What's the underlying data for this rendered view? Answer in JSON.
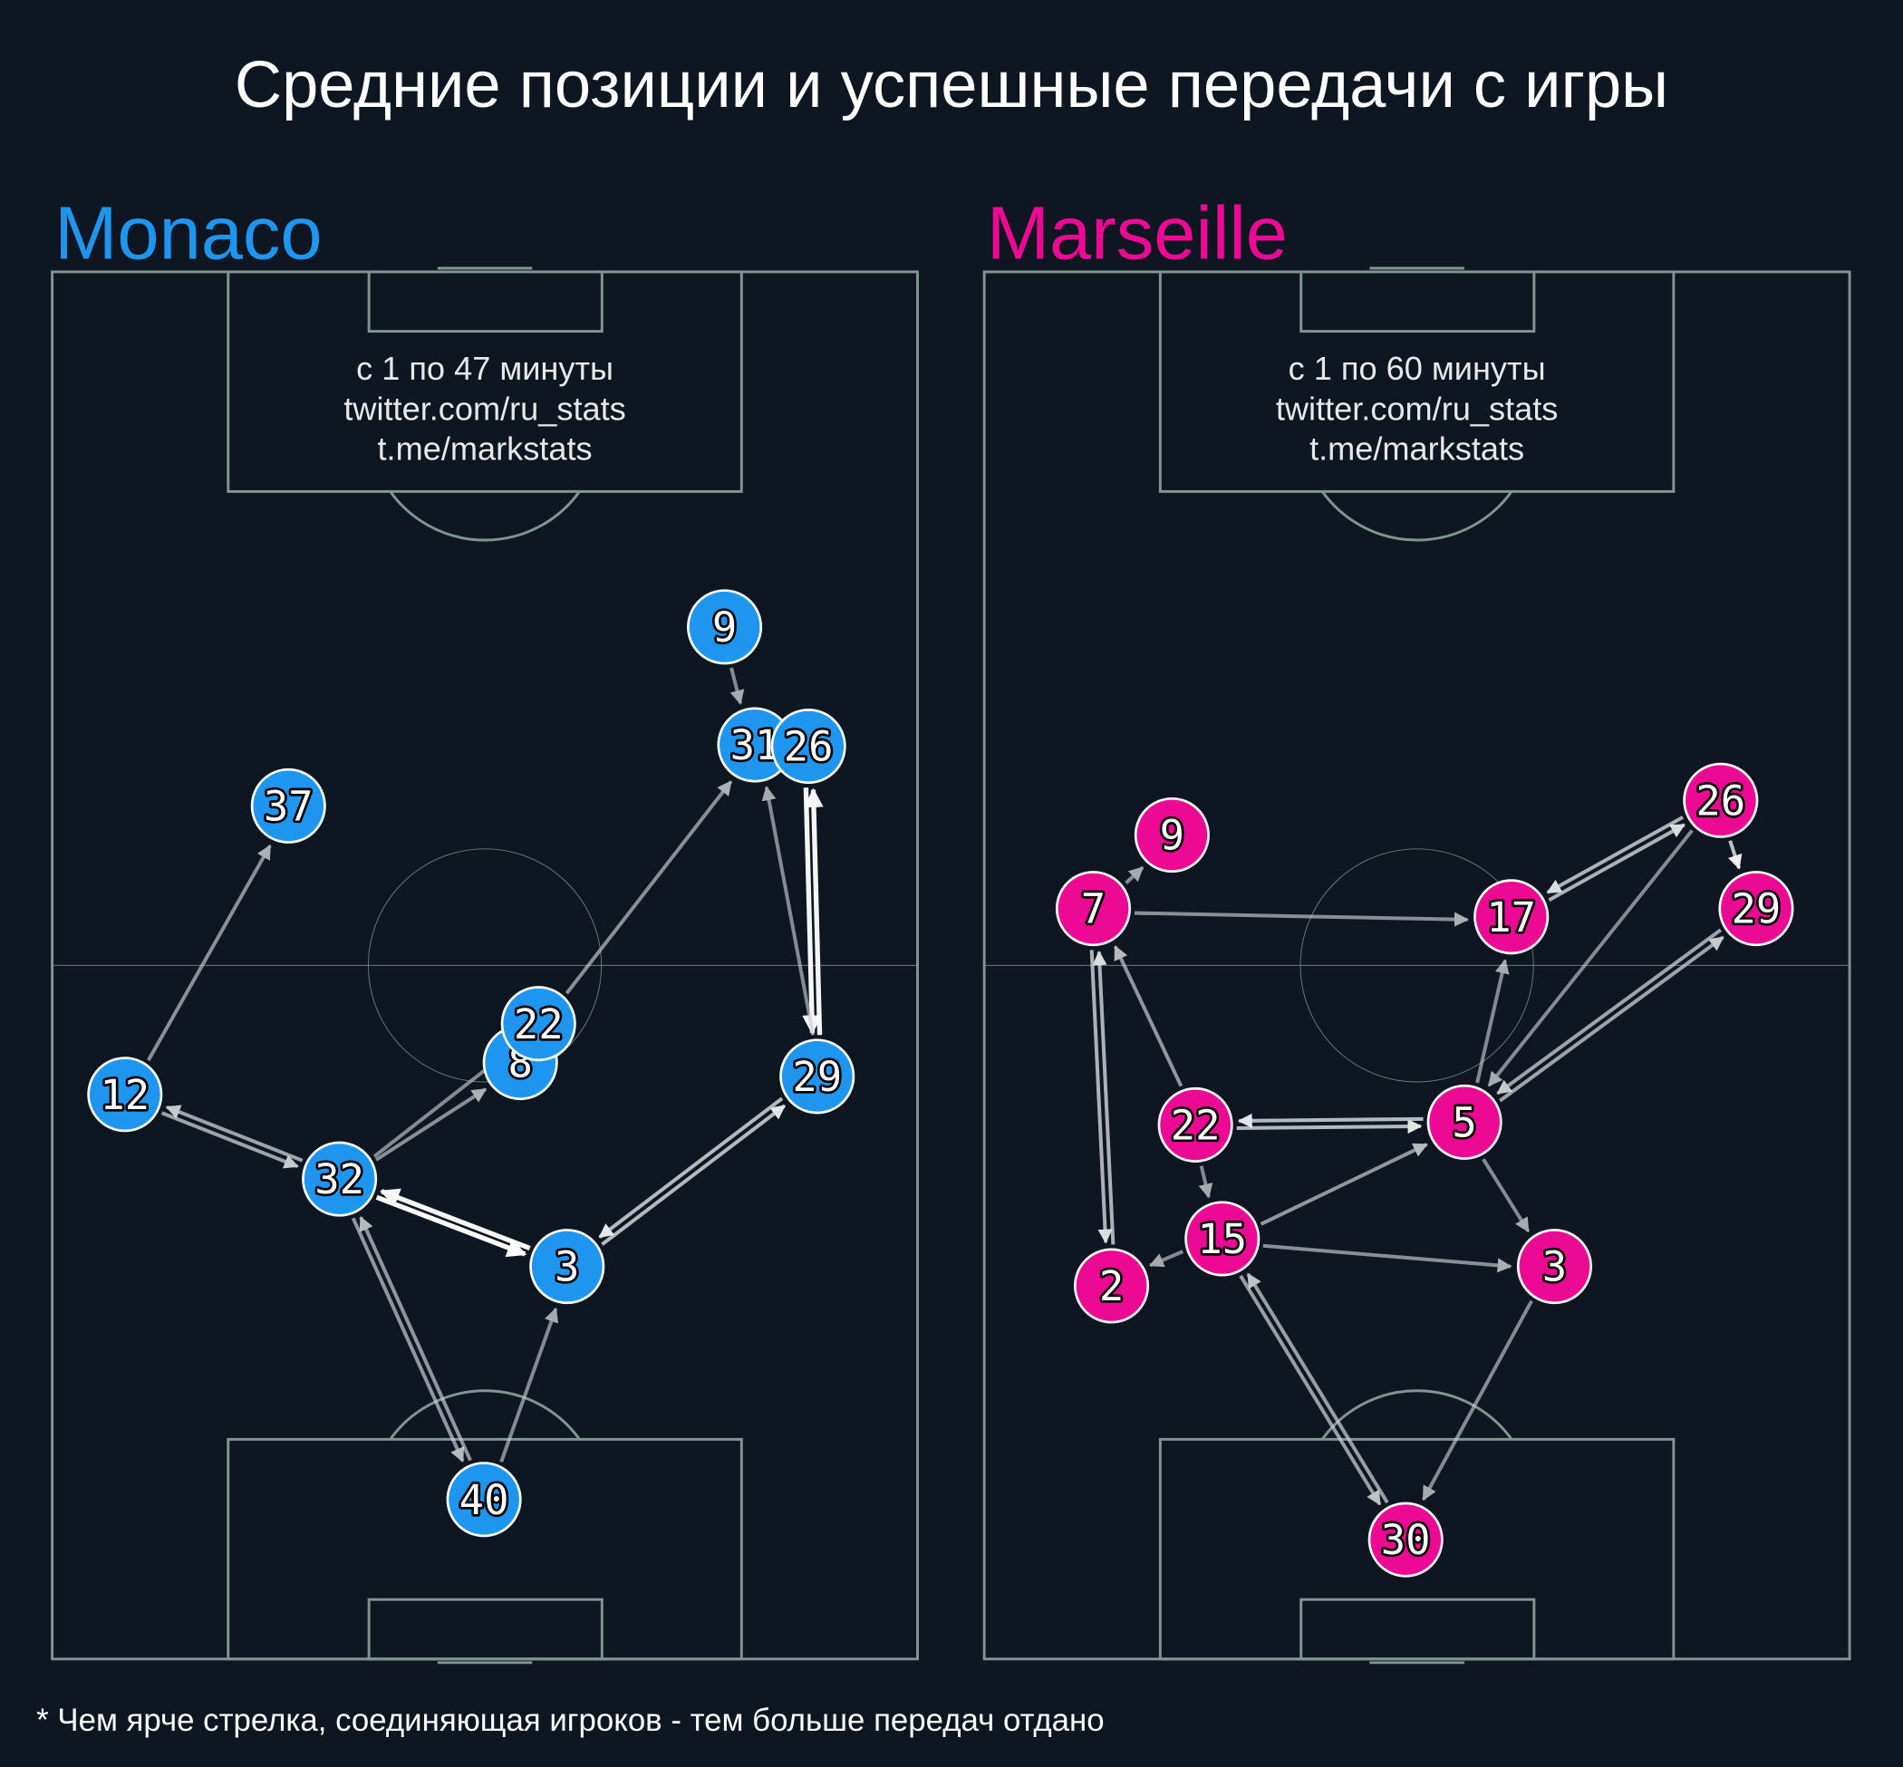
{
  "title": "Средние позиции и успешные передачи с игры",
  "footnote": "* Чем ярче стрелка, соединяющая игроков - тем больше передач отдано",
  "colors": {
    "background": "#0e1721",
    "pitch_lines": "#7f9590",
    "monaco": "#1e96f0",
    "marseille": "#ec0a95",
    "arrow": "#ffffff"
  },
  "chart_data": [
    {
      "type": "scatter",
      "team": "Monaco",
      "color": "#1e96f0",
      "info_lines": [
        "с 1 по 47 минуты",
        "twitter.com/ru_stats",
        "t.me/markstats"
      ],
      "players": [
        {
          "num": "9",
          "x": 77.7,
          "y": 25.6
        },
        {
          "num": "31",
          "x": 81.2,
          "y": 34.1
        },
        {
          "num": "26",
          "x": 87.4,
          "y": 34.2
        },
        {
          "num": "37",
          "x": 27.3,
          "y": 38.5
        },
        {
          "num": "8",
          "x": 54.1,
          "y": 57.0
        },
        {
          "num": "22",
          "x": 56.2,
          "y": 54.2
        },
        {
          "num": "12",
          "x": 8.4,
          "y": 59.3
        },
        {
          "num": "29",
          "x": 88.4,
          "y": 58.0
        },
        {
          "num": "32",
          "x": 33.2,
          "y": 65.4
        },
        {
          "num": "3",
          "x": 59.5,
          "y": 71.7
        },
        {
          "num": "40",
          "x": 49.9,
          "y": 88.5
        }
      ],
      "passes": [
        {
          "from": "9",
          "to": "31",
          "intensity": 0.5
        },
        {
          "from": "12",
          "to": "37",
          "intensity": 0.55
        },
        {
          "from": "12",
          "to": "32",
          "intensity": 0.7
        },
        {
          "from": "32",
          "to": "12",
          "intensity": 0.7
        },
        {
          "from": "32",
          "to": "8",
          "intensity": 0.55
        },
        {
          "from": "32",
          "to": "22",
          "intensity": 0.5
        },
        {
          "from": "22",
          "to": "31",
          "intensity": 0.55
        },
        {
          "from": "32",
          "to": "3",
          "intensity": 1.0
        },
        {
          "from": "3",
          "to": "32",
          "intensity": 0.95
        },
        {
          "from": "3",
          "to": "29",
          "intensity": 0.85
        },
        {
          "from": "29",
          "to": "3",
          "intensity": 0.85
        },
        {
          "from": "29",
          "to": "26",
          "intensity": 0.95
        },
        {
          "from": "26",
          "to": "29",
          "intensity": 0.95
        },
        {
          "from": "29",
          "to": "31",
          "intensity": 0.5
        },
        {
          "from": "40",
          "to": "32",
          "intensity": 0.6
        },
        {
          "from": "32",
          "to": "40",
          "intensity": 0.6
        },
        {
          "from": "40",
          "to": "3",
          "intensity": 0.5
        }
      ]
    },
    {
      "type": "scatter",
      "team": "Marseille",
      "color": "#ec0a95",
      "info_lines": [
        "с 1 по 60 минуты",
        "twitter.com/ru_stats",
        "t.me/markstats"
      ],
      "players": [
        {
          "num": "26",
          "x": 85.1,
          "y": 38.1
        },
        {
          "num": "9",
          "x": 21.7,
          "y": 40.6
        },
        {
          "num": "7",
          "x": 12.6,
          "y": 45.9
        },
        {
          "num": "17",
          "x": 60.9,
          "y": 46.5
        },
        {
          "num": "29",
          "x": 89.2,
          "y": 45.9
        },
        {
          "num": "22",
          "x": 24.4,
          "y": 61.5
        },
        {
          "num": "5",
          "x": 55.5,
          "y": 61.3
        },
        {
          "num": "15",
          "x": 27.5,
          "y": 69.7
        },
        {
          "num": "2",
          "x": 14.7,
          "y": 73.1
        },
        {
          "num": "3",
          "x": 65.9,
          "y": 71.7
        },
        {
          "num": "30",
          "x": 48.7,
          "y": 91.4
        }
      ],
      "passes": [
        {
          "from": "7",
          "to": "9",
          "intensity": 0.5
        },
        {
          "from": "7",
          "to": "17",
          "intensity": 0.55
        },
        {
          "from": "22",
          "to": "7",
          "intensity": 0.6
        },
        {
          "from": "2",
          "to": "7",
          "intensity": 0.8
        },
        {
          "from": "7",
          "to": "2",
          "intensity": 0.8
        },
        {
          "from": "22",
          "to": "5",
          "intensity": 0.85
        },
        {
          "from": "5",
          "to": "22",
          "intensity": 0.85
        },
        {
          "from": "22",
          "to": "15",
          "intensity": 0.5
        },
        {
          "from": "15",
          "to": "2",
          "intensity": 0.5
        },
        {
          "from": "15",
          "to": "5",
          "intensity": 0.6
        },
        {
          "from": "5",
          "to": "17",
          "intensity": 0.5
        },
        {
          "from": "26",
          "to": "17",
          "intensity": 0.8
        },
        {
          "from": "17",
          "to": "26",
          "intensity": 0.8
        },
        {
          "from": "26",
          "to": "5",
          "intensity": 0.5
        },
        {
          "from": "5",
          "to": "29",
          "intensity": 0.7
        },
        {
          "from": "29",
          "to": "5",
          "intensity": 0.7
        },
        {
          "from": "26",
          "to": "29",
          "intensity": 0.9
        },
        {
          "from": "5",
          "to": "3",
          "intensity": 0.5
        },
        {
          "from": "15",
          "to": "3",
          "intensity": 0.55
        },
        {
          "from": "15",
          "to": "30",
          "intensity": 0.65
        },
        {
          "from": "30",
          "to": "15",
          "intensity": 0.65
        },
        {
          "from": "3",
          "to": "30",
          "intensity": 0.5
        }
      ]
    }
  ]
}
